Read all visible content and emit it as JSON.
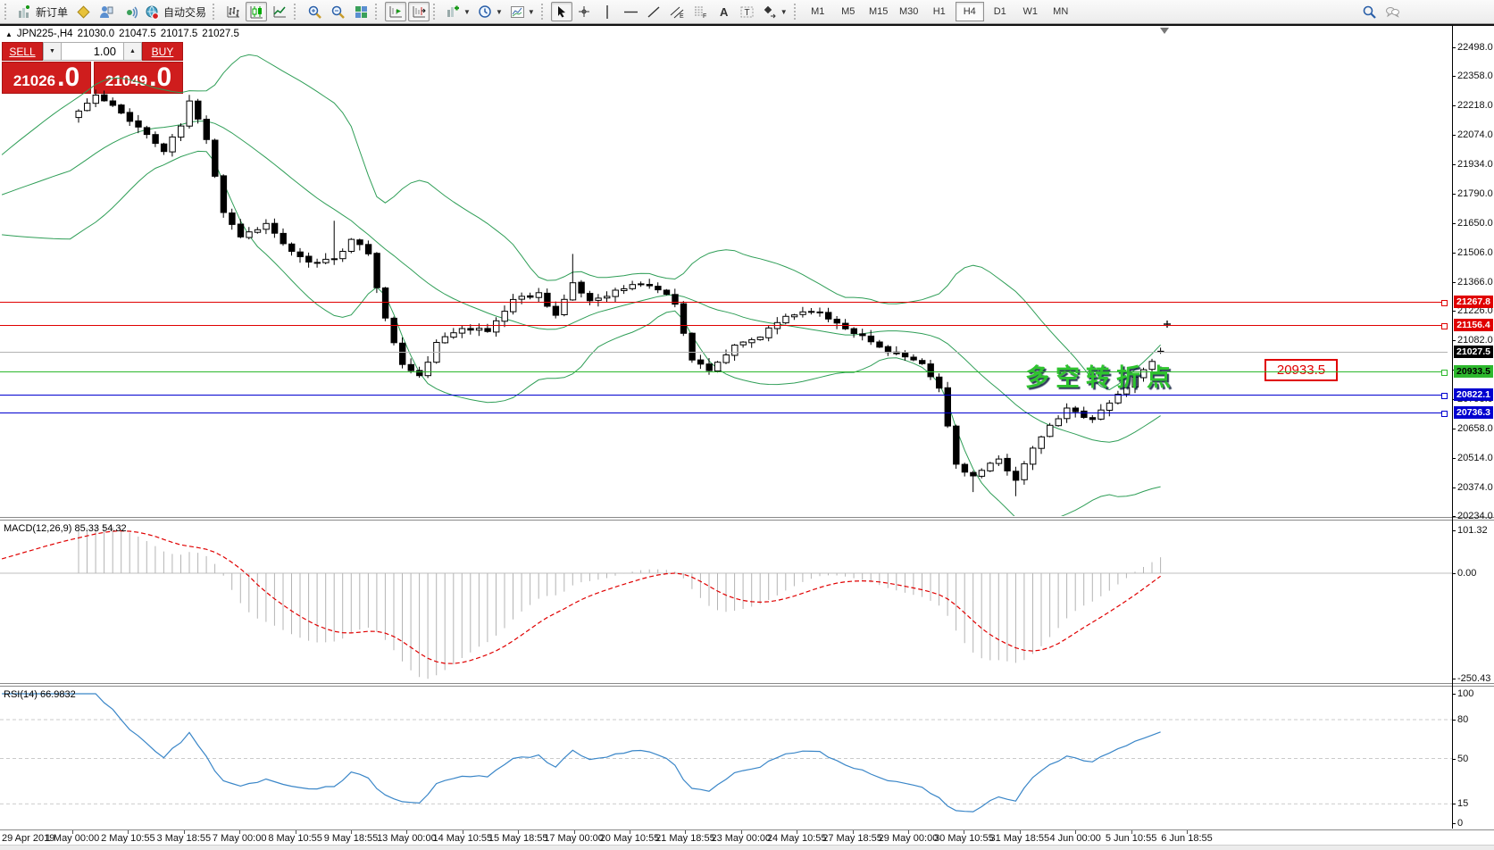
{
  "toolbar": {
    "groups": [
      {
        "items": [
          {
            "icon": "new-order",
            "label": "新订单",
            "name": "new-order-button"
          },
          {
            "icon": "layers",
            "name": "layers-button"
          },
          {
            "icon": "market-watch",
            "name": "market-watch-button"
          },
          {
            "icon": "signals",
            "name": "signals-button"
          },
          {
            "icon": "autotrading",
            "label": "自动交易",
            "name": "autotrading-button"
          }
        ]
      },
      {
        "items": [
          {
            "icon": "bars",
            "name": "bar-chart-button"
          },
          {
            "icon": "candles",
            "pressed": true,
            "name": "candlestick-chart-button"
          },
          {
            "icon": "line-chart",
            "name": "line-chart-button"
          }
        ]
      },
      {
        "items": [
          {
            "icon": "zoom-in",
            "name": "zoom-in-button"
          },
          {
            "icon": "zoom-out",
            "name": "zoom-out-button"
          },
          {
            "icon": "tile-windows",
            "name": "tile-windows-button"
          }
        ]
      },
      {
        "items": [
          {
            "icon": "auto-scroll",
            "pressed": true,
            "name": "auto-scroll-button"
          },
          {
            "icon": "chart-shift",
            "pressed": true,
            "name": "chart-shift-button"
          }
        ]
      },
      {
        "items": [
          {
            "icon": "indicators",
            "caret": true,
            "name": "indicators-button"
          },
          {
            "icon": "periods",
            "caret": true,
            "name": "periods-button"
          },
          {
            "icon": "templates",
            "caret": true,
            "name": "templates-button"
          }
        ]
      },
      {
        "items": [
          {
            "icon": "cursor",
            "pressed": true,
            "name": "cursor-button"
          },
          {
            "icon": "crosshair",
            "name": "crosshair-button"
          },
          {
            "icon": "vline",
            "name": "vertical-line-button"
          },
          {
            "icon": "hline",
            "name": "horizontal-line-button"
          },
          {
            "icon": "trendline",
            "name": "trendline-button"
          },
          {
            "icon": "channel",
            "name": "equidistant-channel-button"
          },
          {
            "icon": "fibonacci",
            "name": "fibonacci-button"
          },
          {
            "icon": "text",
            "name": "text-button"
          },
          {
            "icon": "label",
            "name": "text-label-button"
          },
          {
            "icon": "arrows",
            "caret": true,
            "name": "arrows-button"
          }
        ]
      }
    ],
    "timeframes": [
      {
        "label": "M1"
      },
      {
        "label": "M5"
      },
      {
        "label": "M15"
      },
      {
        "label": "M30"
      },
      {
        "label": "H1"
      },
      {
        "label": "H4",
        "pressed": true
      },
      {
        "label": "D1"
      },
      {
        "label": "W1"
      },
      {
        "label": "MN"
      }
    ],
    "right_icons": [
      {
        "icon": "search",
        "name": "search-icon"
      },
      {
        "icon": "community",
        "name": "community-icon"
      }
    ]
  },
  "order_panel": {
    "sell_label": "SELL",
    "buy_label": "BUY",
    "volume": "1.00",
    "sell_price": {
      "int": "21026",
      "dec": ".0"
    },
    "buy_price": {
      "int": "21049",
      "dec": ".0"
    }
  },
  "chart_data": {
    "type": "candlestick",
    "title": {
      "symbol_period": "JPN225-,H4",
      "open": "21030.0",
      "high": "21047.5",
      "low": "21017.5",
      "close": "21027.5"
    },
    "bid": 21026.0,
    "ask": 21049.0,
    "current_price": {
      "value": 21027.5,
      "label": "21027.5"
    },
    "y_axis_ticks": [
      "22498.0",
      "22358.0",
      "22218.0",
      "22074.0",
      "21934.0",
      "21790.0",
      "21650.0",
      "21506.0",
      "21366.0",
      "21226.0",
      "21082.0",
      "20942.0",
      "20798.0",
      "20658.0",
      "20514.0",
      "20374.0",
      "20234.0"
    ],
    "x_axis_labels": [
      "29 Apr 2019",
      "1 May 00:00",
      "2 May 10:55",
      "3 May 18:55",
      "7 May 00:00",
      "8 May 10:55",
      "9 May 18:55",
      "13 May 00:00",
      "14 May 10:55",
      "15 May 18:55",
      "17 May 00:00",
      "20 May 10:55",
      "21 May 18:55",
      "23 May 00:00",
      "24 May 10:55",
      "27 May 18:55",
      "29 May 00:00",
      "30 May 10:55",
      "31 May 18:55",
      "4 Jun 00:00",
      "5 Jun 10:55",
      "6 Jun 18:55"
    ],
    "horizontal_lines": [
      {
        "price": 21267.8,
        "label": "21267.8",
        "color": "#e00000",
        "text": "#ffffff"
      },
      {
        "price": 21156.4,
        "label": "21156.4",
        "color": "#e00000",
        "text": "#ffffff"
      },
      {
        "price": 20933.5,
        "label": "20933.5",
        "color": "#2db82d",
        "text": "#000000"
      },
      {
        "price": 20822.1,
        "label": "20822.1",
        "color": "#0000d0",
        "text": "#ffffff"
      },
      {
        "price": 20736.3,
        "label": "20736.3",
        "color": "#0000d0",
        "text": "#ffffff"
      }
    ],
    "annotations": {
      "turning_point": {
        "text": "多空转折点",
        "color": "#2fc42f"
      },
      "price_callout": {
        "text": "20933.5",
        "color": "#e00000"
      }
    },
    "num_candles": 128,
    "close_anchors": [
      [
        0,
        22190
      ],
      [
        2,
        22265
      ],
      [
        4,
        22210
      ],
      [
        6,
        22150
      ],
      [
        8,
        22075
      ],
      [
        10,
        21995
      ],
      [
        12,
        22120
      ],
      [
        13,
        22235
      ],
      [
        15,
        22060
      ],
      [
        17,
        21705
      ],
      [
        19,
        21585
      ],
      [
        22,
        21645
      ],
      [
        25,
        21505
      ],
      [
        27,
        21455
      ],
      [
        30,
        21480
      ],
      [
        32,
        21565
      ],
      [
        34,
        21505
      ],
      [
        36,
        21185
      ],
      [
        38,
        20965
      ],
      [
        40,
        20905
      ],
      [
        42,
        21065
      ],
      [
        45,
        21150
      ],
      [
        48,
        21125
      ],
      [
        51,
        21280
      ],
      [
        54,
        21310
      ],
      [
        56,
        21205
      ],
      [
        58,
        21350
      ],
      [
        60,
        21275
      ],
      [
        63,
        21320
      ],
      [
        66,
        21360
      ],
      [
        68,
        21330
      ],
      [
        70,
        21265
      ],
      [
        72,
        20985
      ],
      [
        74,
        20945
      ],
      [
        77,
        21050
      ],
      [
        80,
        21100
      ],
      [
        83,
        21200
      ],
      [
        86,
        21230
      ],
      [
        88,
        21190
      ],
      [
        91,
        21125
      ],
      [
        94,
        21050
      ],
      [
        97,
        21000
      ],
      [
        99,
        20960
      ],
      [
        101,
        20850
      ],
      [
        103,
        20485
      ],
      [
        105,
        20425
      ],
      [
        108,
        20505
      ],
      [
        110,
        20415
      ],
      [
        113,
        20620
      ],
      [
        116,
        20750
      ],
      [
        119,
        20705
      ],
      [
        121,
        20780
      ],
      [
        124,
        20900
      ],
      [
        126,
        20990
      ],
      [
        127,
        21030
      ]
    ],
    "prehistory_anchors": [
      [
        -20,
        21640
      ],
      [
        -14,
        21790
      ],
      [
        -8,
        21980
      ],
      [
        -3,
        22120
      ],
      [
        -1,
        22160
      ]
    ],
    "wick_events": [
      {
        "i": 30,
        "high": 21660
      },
      {
        "i": 58,
        "high": 21500
      },
      {
        "i": 105,
        "low": 20350
      },
      {
        "i": 110,
        "low": 20330
      }
    ],
    "last_candle": {
      "open": 21030.0,
      "high": 21047.5,
      "low": 21017.5,
      "close": 21027.5
    },
    "indicators": {
      "bollinger": {
        "name": "Bollinger Bands",
        "period": 20,
        "deviation": 2,
        "color": "#2f9e57"
      },
      "macd": {
        "label": "MACD(12,26,9)",
        "main_value": "85.33",
        "signal_value": "54.32",
        "axis_labels": [
          {
            "v": 101.32,
            "t": "101.32"
          },
          {
            "v": 0,
            "t": "0.00"
          },
          {
            "v": -250.43,
            "t": "-250.43"
          }
        ],
        "hist_color": "#b4b4b4",
        "signal_color": "#e00000"
      },
      "rsi": {
        "label": "RSI(14)",
        "value": "66.9832",
        "color": "#3a86c8",
        "axis_labels": [
          {
            "v": 100,
            "t": "100"
          },
          {
            "v": 80,
            "t": "80"
          },
          {
            "v": 50,
            "t": "50"
          },
          {
            "v": 15,
            "t": "15"
          },
          {
            "v": 0,
            "t": "0"
          }
        ],
        "levels": [
          80,
          50,
          15
        ]
      }
    },
    "colors": {
      "bull": "#ffffff",
      "bear": "#000000",
      "outline": "#000000",
      "bid_line": "#b3b3b3",
      "bid_tag_bg": "#000000"
    }
  }
}
